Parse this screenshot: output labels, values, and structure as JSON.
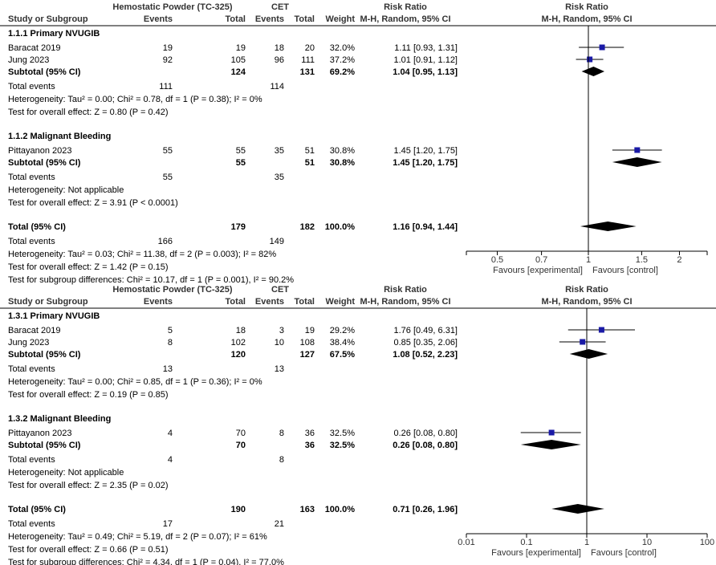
{
  "headers": {
    "experimental_group": "Hemostatic Powder (TC-325)",
    "control_group": "CET",
    "risk_ratio": "Risk Ratio",
    "method": "M-H, Random, 95% CI",
    "study_col": "Study or Subgroup",
    "events": "Events",
    "total": "Total",
    "weight": "Weight"
  },
  "chart_data": [
    {
      "type": "forest",
      "scale": "log",
      "xlim": [
        0.4,
        2.5
      ],
      "ticks": [
        {
          "value": 0.5,
          "label": "0.5"
        },
        {
          "value": 0.7,
          "label": "0.7"
        },
        {
          "value": 1,
          "label": "1"
        },
        {
          "value": 1.5,
          "label": "1.5"
        },
        {
          "value": 2,
          "label": "2"
        }
      ],
      "favours_left": "Favours [experimental]",
      "favours_right": "Favours [control]",
      "subgroups": [
        {
          "title": "1.1.1 Primary NVUGIB",
          "studies": [
            {
              "name": "Baracat  2019",
              "e_events": "19",
              "e_total": "19",
              "c_events": "18",
              "c_total": "20",
              "weight": "32.0%",
              "ci_text": "1.11 [0.93, 1.31]",
              "rr": 1.11,
              "lo": 0.93,
              "hi": 1.31
            },
            {
              "name": "Jung 2023",
              "e_events": "92",
              "e_total": "105",
              "c_events": "96",
              "c_total": "111",
              "weight": "37.2%",
              "ci_text": "1.01 [0.91, 1.12]",
              "rr": 1.01,
              "lo": 0.91,
              "hi": 1.12
            }
          ],
          "subtotal": {
            "label": "Subtotal (95% CI)",
            "e_total": "124",
            "c_total": "131",
            "weight": "69.2%",
            "ci_text": "1.04 [0.95, 1.13]",
            "rr": 1.04,
            "lo": 0.95,
            "hi": 1.13
          },
          "total_events": {
            "label": "Total events",
            "e": "111",
            "c": "114"
          },
          "heterogeneity": "Heterogeneity: Tau² = 0.00; Chi² = 0.78, df = 1 (P = 0.38); I² = 0%",
          "overall": "Test for overall effect: Z = 0.80 (P = 0.42)"
        },
        {
          "title": "1.1.2 Malignant Bleeding",
          "studies": [
            {
              "name": "Pittayanon 2023",
              "e_events": "55",
              "e_total": "55",
              "c_events": "35",
              "c_total": "51",
              "weight": "30.8%",
              "ci_text": "1.45 [1.20, 1.75]",
              "rr": 1.45,
              "lo": 1.2,
              "hi": 1.75
            }
          ],
          "subtotal": {
            "label": "Subtotal (95% CI)",
            "e_total": "55",
            "c_total": "51",
            "weight": "30.8%",
            "ci_text": "1.45 [1.20, 1.75]",
            "rr": 1.45,
            "lo": 1.2,
            "hi": 1.75
          },
          "total_events": {
            "label": "Total events",
            "e": "55",
            "c": "35"
          },
          "heterogeneity": "Heterogeneity: Not applicable",
          "overall": "Test for overall effect: Z = 3.91 (P < 0.0001)"
        }
      ],
      "total": {
        "label": "Total (95% CI)",
        "e_total": "179",
        "c_total": "182",
        "weight": "100.0%",
        "ci_text": "1.16 [0.94, 1.44]",
        "rr": 1.16,
        "lo": 0.94,
        "hi": 1.44
      },
      "total_events": {
        "label": "Total events",
        "e": "166",
        "c": "149"
      },
      "heterogeneity": "Heterogeneity: Tau² = 0.03; Chi² = 11.38, df = 2 (P = 0.003); I² = 82%",
      "overall": "Test for overall effect: Z = 1.42 (P = 0.15)",
      "subgroup_diff": "Test for subgroup differences: Chi² = 10.17, df = 1 (P = 0.001), I² = 90.2%"
    },
    {
      "type": "forest",
      "scale": "log",
      "xlim": [
        0.01,
        100
      ],
      "ticks": [
        {
          "value": 0.01,
          "label": "0.01"
        },
        {
          "value": 0.1,
          "label": "0.1"
        },
        {
          "value": 1,
          "label": "1"
        },
        {
          "value": 10,
          "label": "10"
        },
        {
          "value": 100,
          "label": "100"
        }
      ],
      "favours_left": "Favours [experimental]",
      "favours_right": "Favours [control]",
      "subgroups": [
        {
          "title": "1.3.1 Primary NVUGIB",
          "studies": [
            {
              "name": "Baracat  2019",
              "e_events": "5",
              "e_total": "18",
              "c_events": "3",
              "c_total": "19",
              "weight": "29.2%",
              "ci_text": "1.76 [0.49, 6.31]",
              "rr": 1.76,
              "lo": 0.49,
              "hi": 6.31
            },
            {
              "name": "Jung 2023",
              "e_events": "8",
              "e_total": "102",
              "c_events": "10",
              "c_total": "108",
              "weight": "38.4%",
              "ci_text": "0.85 [0.35, 2.06]",
              "rr": 0.85,
              "lo": 0.35,
              "hi": 2.06
            }
          ],
          "subtotal": {
            "label": "Subtotal (95% CI)",
            "e_total": "120",
            "c_total": "127",
            "weight": "67.5%",
            "ci_text": "1.08 [0.52, 2.23]",
            "rr": 1.08,
            "lo": 0.52,
            "hi": 2.23
          },
          "total_events": {
            "label": "Total events",
            "e": "13",
            "c": "13"
          },
          "heterogeneity": "Heterogeneity: Tau² = 0.00; Chi² = 0.85, df = 1 (P = 0.36); I² = 0%",
          "overall": "Test for overall effect: Z = 0.19 (P = 0.85)"
        },
        {
          "title": "1.3.2 Malignant Bleeding",
          "studies": [
            {
              "name": "Pittayanon 2023",
              "e_events": "4",
              "e_total": "70",
              "c_events": "8",
              "c_total": "36",
              "weight": "32.5%",
              "ci_text": "0.26 [0.08, 0.80]",
              "rr": 0.26,
              "lo": 0.08,
              "hi": 0.8
            }
          ],
          "subtotal": {
            "label": "Subtotal (95% CI)",
            "e_total": "70",
            "c_total": "36",
            "weight": "32.5%",
            "ci_text": "0.26 [0.08, 0.80]",
            "rr": 0.26,
            "lo": 0.08,
            "hi": 0.8
          },
          "total_events": {
            "label": "Total events",
            "e": "4",
            "c": "8"
          },
          "heterogeneity": "Heterogeneity: Not applicable",
          "overall": "Test for overall effect: Z = 2.35 (P = 0.02)"
        }
      ],
      "total": {
        "label": "Total (95% CI)",
        "e_total": "190",
        "c_total": "163",
        "weight": "100.0%",
        "ci_text": "0.71 [0.26, 1.96]",
        "rr": 0.71,
        "lo": 0.26,
        "hi": 1.96
      },
      "total_events": {
        "label": "Total events",
        "e": "17",
        "c": "21"
      },
      "heterogeneity": "Heterogeneity: Tau² = 0.49; Chi² = 5.19, df = 2 (P = 0.07); I² = 61%",
      "overall": "Test for overall effect: Z = 0.66 (P = 0.51)",
      "subgroup_diff": "Test for subgroup differences: Chi² = 4.34, df = 1 (P = 0.04), I² = 77.0%"
    }
  ],
  "colors": {
    "marker": "#1a1aa6",
    "diamond": "#000000",
    "line": "#000000",
    "header_text": "#333333"
  }
}
